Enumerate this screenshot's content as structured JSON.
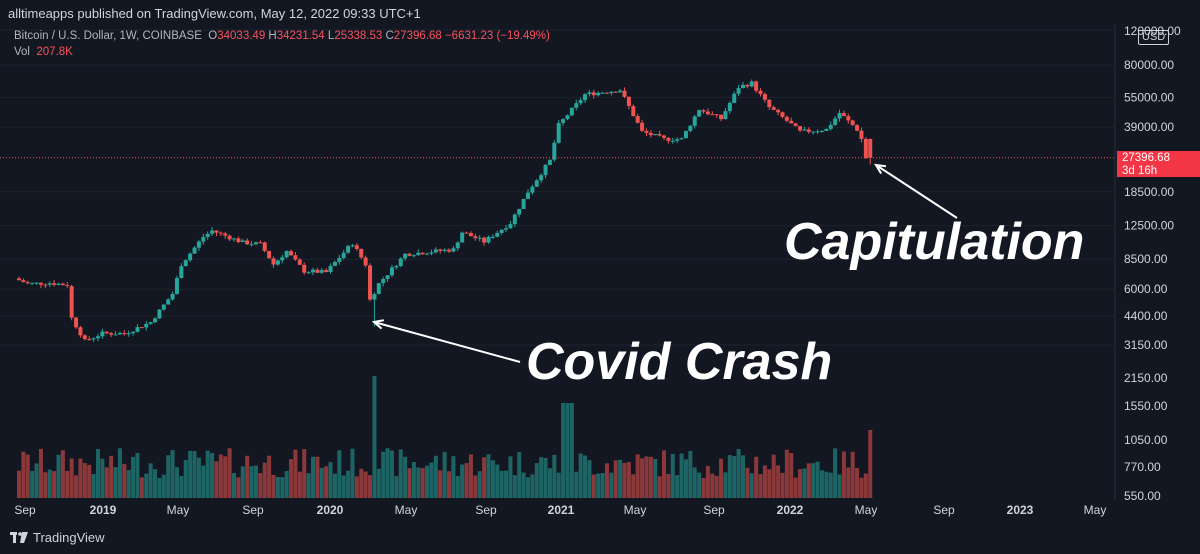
{
  "header": {
    "published": "alltimeapps published on TradingView.com, May 12, 2022 09:33 UTC+1"
  },
  "legend": {
    "symbol": "Bitcoin / U.S. Dollar, 1W, COINBASE",
    "open_label": "O",
    "open": "34033.49",
    "high_label": "H",
    "high": "34231.54",
    "low_label": "L",
    "low": "25338.53",
    "close_label": "C",
    "close": "27396.68",
    "change": "−6631.23 (−19.49%)",
    "vol_label": "Vol",
    "vol_value": "207.8K"
  },
  "price_axis": {
    "currency": "USD",
    "labels": [
      "120000.00",
      "80000.00",
      "55000.00",
      "39000.00",
      "18500.00",
      "12500.00",
      "8500.00",
      "6000.00",
      "4400.00",
      "3150.00",
      "2150.00",
      "1550.00",
      "1050.00",
      "770.00",
      "550.00"
    ],
    "last_price": "27396.68",
    "countdown": "3d 16h"
  },
  "time_axis": [
    {
      "label": "Sep",
      "bold": false
    },
    {
      "label": "2019",
      "bold": true
    },
    {
      "label": "May",
      "bold": false
    },
    {
      "label": "Sep",
      "bold": false
    },
    {
      "label": "2020",
      "bold": true
    },
    {
      "label": "May",
      "bold": false
    },
    {
      "label": "Sep",
      "bold": false
    },
    {
      "label": "2021",
      "bold": true
    },
    {
      "label": "May",
      "bold": false
    },
    {
      "label": "Sep",
      "bold": false
    },
    {
      "label": "2022",
      "bold": true
    },
    {
      "label": "May",
      "bold": false
    },
    {
      "label": "Sep",
      "bold": false
    },
    {
      "label": "2023",
      "bold": true
    },
    {
      "label": "May",
      "bold": false
    }
  ],
  "annotations": {
    "covid": "Covid Crash",
    "capitulation": "Capitulation"
  },
  "footer": {
    "brand": "TradingView"
  },
  "colors": {
    "up": "#26a69a",
    "down": "#ef5350",
    "bg": "#131722",
    "grid": "#1e222d",
    "text": "#d1d4dc"
  },
  "chart_data": {
    "type": "candlestick",
    "symbol": "BTCUSD",
    "interval": "1W",
    "scale": "log",
    "ylim": [
      550,
      120000
    ],
    "x_start": "2018-08-20",
    "x_end": "2022-05-09",
    "close_path": [
      [
        "2018-08-20",
        6800
      ],
      [
        "2018-09-10",
        6400
      ],
      [
        "2018-10-15",
        6450
      ],
      [
        "2018-11-12",
        6300
      ],
      [
        "2018-11-19",
        4300
      ],
      [
        "2018-12-10",
        3300
      ],
      [
        "2019-01-07",
        3600
      ],
      [
        "2019-02-11",
        3600
      ],
      [
        "2019-03-25",
        4100
      ],
      [
        "2019-04-29",
        5700
      ],
      [
        "2019-05-13",
        8000
      ],
      [
        "2019-06-17",
        11000
      ],
      [
        "2019-07-01",
        11800
      ],
      [
        "2019-08-19",
        10300
      ],
      [
        "2019-09-16",
        10100
      ],
      [
        "2019-10-07",
        8000
      ],
      [
        "2019-10-28",
        9300
      ],
      [
        "2019-11-25",
        7400
      ],
      [
        "2019-12-30",
        7300
      ],
      [
        "2020-02-03",
        9700
      ],
      [
        "2020-02-10",
        10200
      ],
      [
        "2020-03-02",
        8000
      ],
      [
        "2020-03-09",
        5300
      ],
      [
        "2020-03-23",
        6400
      ],
      [
        "2020-05-04",
        9000
      ],
      [
        "2020-07-20",
        9500
      ],
      [
        "2020-08-03",
        11600
      ],
      [
        "2020-09-07",
        10400
      ],
      [
        "2020-10-19",
        12900
      ],
      [
        "2020-11-16",
        18500
      ],
      [
        "2020-12-21",
        26500
      ],
      [
        "2021-01-04",
        40000
      ],
      [
        "2021-02-15",
        57000
      ],
      [
        "2021-04-12",
        60000
      ],
      [
        "2021-05-17",
        37000
      ],
      [
        "2021-06-21",
        34000
      ],
      [
        "2021-07-19",
        34000
      ],
      [
        "2021-08-16",
        48000
      ],
      [
        "2021-09-20",
        43000
      ],
      [
        "2021-10-18",
        62000
      ],
      [
        "2021-11-08",
        65000
      ],
      [
        "2021-12-06",
        49000
      ],
      [
        "2022-01-03",
        42000
      ],
      [
        "2022-01-24",
        37000
      ],
      [
        "2022-03-07",
        38000
      ],
      [
        "2022-03-28",
        46000
      ],
      [
        "2022-04-25",
        38000
      ],
      [
        "2022-05-02",
        34033.49
      ],
      [
        "2022-05-09",
        27396.68
      ]
    ],
    "last_candle": {
      "date": "2022-05-09",
      "open": 34033.49,
      "high": 34231.54,
      "low": 25338.53,
      "close": 27396.68
    },
    "volume": {
      "last": "207.8K"
    }
  }
}
